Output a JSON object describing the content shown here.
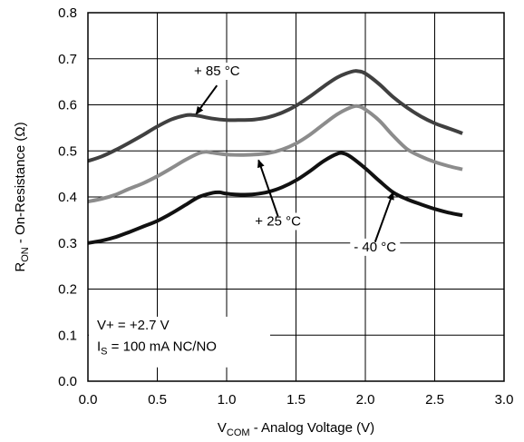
{
  "chart_data": {
    "type": "line",
    "grid": true,
    "xlim": [
      0,
      3.0
    ],
    "ylim": [
      0,
      0.8
    ],
    "x_ticks": [
      "0.0",
      "0.5",
      "1.0",
      "1.5",
      "2.0",
      "2.5",
      "3.0"
    ],
    "y_ticks": [
      "0.0",
      "0.1",
      "0.2",
      "0.3",
      "0.4",
      "0.5",
      "0.6",
      "0.7",
      "0.8"
    ],
    "xlabel": {
      "main": "V",
      "sub": "COM",
      "rest": " - Analog Voltage (V)"
    },
    "ylabel": {
      "main": "R",
      "sub": "ON",
      "rest": " - On-Resistance (Ω)"
    },
    "conditions": {
      "line1": "V+ = +2.7 V",
      "line2_main": "I",
      "line2_sub": "S",
      "line2_rest": " = 100 mA NC/NO"
    },
    "series": [
      {
        "name": "+ 85 °C",
        "color": "#404040",
        "x": [
          0.0,
          0.1,
          0.2,
          0.3,
          0.4,
          0.5,
          0.6,
          0.7,
          0.75,
          0.8,
          0.9,
          1.0,
          1.1,
          1.2,
          1.3,
          1.4,
          1.5,
          1.6,
          1.7,
          1.8,
          1.9,
          1.95,
          2.0,
          2.1,
          2.2,
          2.3,
          2.4,
          2.5,
          2.6,
          2.7
        ],
        "y": [
          0.478,
          0.488,
          0.502,
          0.518,
          0.535,
          0.553,
          0.568,
          0.577,
          0.578,
          0.576,
          0.57,
          0.567,
          0.567,
          0.568,
          0.573,
          0.583,
          0.598,
          0.618,
          0.64,
          0.66,
          0.672,
          0.673,
          0.668,
          0.645,
          0.617,
          0.594,
          0.575,
          0.56,
          0.549,
          0.538
        ]
      },
      {
        "name": "+ 25 °C",
        "color": "#8c8c8c",
        "x": [
          0.0,
          0.1,
          0.2,
          0.3,
          0.4,
          0.5,
          0.6,
          0.7,
          0.8,
          0.85,
          0.9,
          1.0,
          1.1,
          1.2,
          1.3,
          1.4,
          1.5,
          1.6,
          1.7,
          1.8,
          1.9,
          1.95,
          2.0,
          2.1,
          2.2,
          2.3,
          2.4,
          2.5,
          2.6,
          2.7
        ],
        "y": [
          0.39,
          0.396,
          0.405,
          0.418,
          0.43,
          0.445,
          0.462,
          0.48,
          0.495,
          0.498,
          0.496,
          0.492,
          0.491,
          0.492,
          0.495,
          0.503,
          0.516,
          0.535,
          0.558,
          0.58,
          0.595,
          0.597,
          0.59,
          0.566,
          0.533,
          0.504,
          0.488,
          0.476,
          0.467,
          0.46
        ]
      },
      {
        "name": "- 40 °C",
        "color": "#111111",
        "x": [
          0.0,
          0.1,
          0.2,
          0.3,
          0.4,
          0.5,
          0.6,
          0.7,
          0.8,
          0.9,
          0.95,
          1.0,
          1.1,
          1.2,
          1.3,
          1.4,
          1.5,
          1.6,
          1.7,
          1.8,
          1.85,
          1.9,
          2.0,
          2.1,
          2.2,
          2.3,
          2.4,
          2.5,
          2.6,
          2.7
        ],
        "y": [
          0.3,
          0.305,
          0.313,
          0.324,
          0.336,
          0.348,
          0.364,
          0.382,
          0.4,
          0.409,
          0.41,
          0.407,
          0.405,
          0.406,
          0.411,
          0.421,
          0.436,
          0.456,
          0.478,
          0.494,
          0.494,
          0.486,
          0.462,
          0.435,
          0.41,
          0.395,
          0.384,
          0.374,
          0.366,
          0.36
        ]
      }
    ],
    "annotations": [
      {
        "text": "+ 85 °C",
        "series": "+ 85 °C",
        "label_at": [
          0.93,
          0.664
        ],
        "arrow_from": [
          0.93,
          0.642
        ],
        "arrow_to": [
          0.78,
          0.58
        ]
      },
      {
        "text": "+ 25 °C",
        "series": "+ 25 °C",
        "label_at": [
          1.37,
          0.338
        ],
        "arrow_from": [
          1.37,
          0.358
        ],
        "arrow_to": [
          1.23,
          0.48
        ]
      },
      {
        "text": "- 40 °C",
        "series": "- 40 °C",
        "label_at": [
          2.07,
          0.282
        ],
        "arrow_from": [
          2.07,
          0.302
        ],
        "arrow_to": [
          2.2,
          0.41
        ]
      }
    ]
  }
}
